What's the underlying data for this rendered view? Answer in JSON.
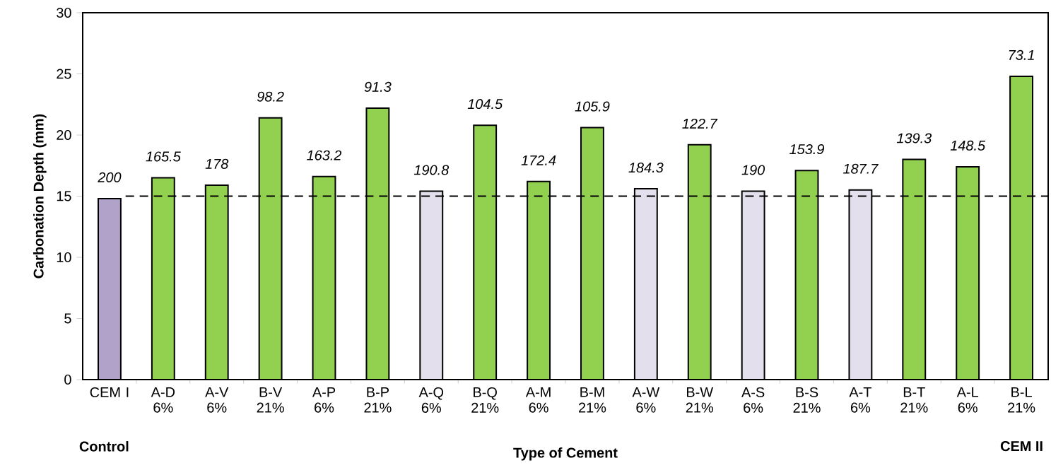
{
  "chart_data": {
    "type": "bar",
    "xlabel": "Type of Cement",
    "ylabel": "Carbonation Depth (mm)",
    "categories": [
      "CEM I",
      "A-D 6%",
      "A-V 6%",
      "B-V 21%",
      "A-P 6%",
      "B-P 21%",
      "A-Q 6%",
      "B-Q 21%",
      "A-M 6%",
      "B-M 21%",
      "A-W 6%",
      "B-W 21%",
      "A-S 6%",
      "B-S 21%",
      "A-T 6%",
      "B-T 21%",
      "A-L 6%",
      "B-L 21%"
    ],
    "values": [
      14.8,
      16.5,
      15.9,
      21.4,
      16.6,
      22.2,
      15.4,
      20.8,
      16.2,
      20.6,
      15.6,
      19.2,
      15.4,
      17.1,
      15.5,
      18.0,
      17.4,
      24.8
    ],
    "colors": [
      "#b1a2ca",
      "#92d050",
      "#92d050",
      "#92d050",
      "#92d050",
      "#92d050",
      "#e4dfec",
      "#92d050",
      "#92d050",
      "#92d050",
      "#e4dfec",
      "#92d050",
      "#e4dfec",
      "#92d050",
      "#e4dfec",
      "#92d050",
      "#92d050",
      "#92d050"
    ],
    "ylim": [
      0,
      30
    ],
    "yticks": [
      0,
      5,
      10,
      15,
      20,
      25,
      30
    ],
    "ref_lines": [
      {
        "axis": "y",
        "value": 15,
        "color": "#000000",
        "line_style": "dashed"
      }
    ],
    "annotations": [
      "Control",
      {
        "text": "200",
        "x": "CEM I",
        "y": 14.8
      },
      {
        "text": "165.5",
        "x": "A-D 6%",
        "y": 16.5
      },
      {
        "text": "178",
        "x": "A-V 6%",
        "y": 15.9
      },
      {
        "text": "98.2",
        "x": "B-V 21%",
        "y": 21.4
      },
      {
        "text": "163.2",
        "x": "A-P 6%",
        "y": 16.6
      },
      {
        "text": "91.3",
        "x": "B-P 21%",
        "y": 22.2
      },
      {
        "text": "190.8",
        "x": "A-Q 6%",
        "y": 15.4
      },
      {
        "text": "104.5",
        "x": "B-Q 21%",
        "y": 20.8
      },
      {
        "text": "172.4",
        "x": "A-M 6%",
        "y": 16.2
      },
      {
        "text": "105.9",
        "x": "B-M 21%",
        "y": 20.6
      },
      {
        "text": "184.3",
        "x": "A-W 6%",
        "y": 15.6
      },
      {
        "text": "122.7",
        "x": "B-W 21%",
        "y": 19.2
      },
      {
        "text": "190",
        "x": "A-S 6%",
        "y": 15.4
      },
      {
        "text": "153.9",
        "x": "B-S 21%",
        "y": 17.1
      },
      {
        "text": "187.7",
        "x": "A-T 6%",
        "y": 15.5
      },
      {
        "text": "139.3",
        "x": "B-T 21%",
        "y": 18.0
      },
      {
        "text": "148.5",
        "x": "A-L 6%",
        "y": 17.4
      },
      {
        "text": "73.1",
        "x": "B-L 21%",
        "y": 24.8
      },
      "CEM II"
    ],
    "grid": false
  }
}
